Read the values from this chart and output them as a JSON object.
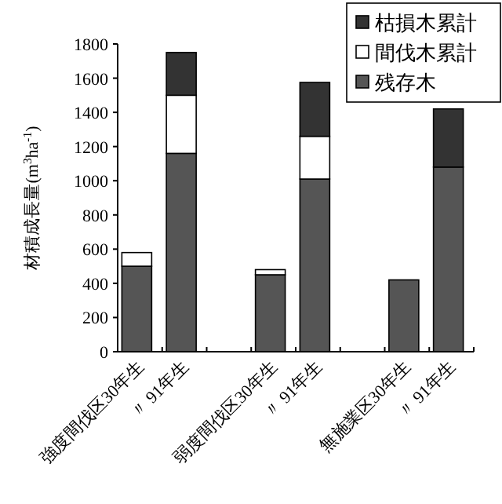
{
  "chart_data": {
    "type": "bar",
    "stacked": true,
    "ylabel": "材積成長量(m$^{3}$ha$^{-1}$)",
    "categories": [
      "強度間伐区30年生",
      "〃 91年生",
      null,
      "弱度間伐区30年生",
      "〃 91年生",
      null,
      "無施業区30年生",
      "〃 91年生"
    ],
    "series": [
      {
        "name": "残存木",
        "color": "#555555",
        "values": [
          500,
          1160,
          null,
          450,
          1010,
          null,
          420,
          1080
        ]
      },
      {
        "name": "間伐木累計",
        "color": "#ffffff",
        "values": [
          80,
          340,
          null,
          30,
          250,
          null,
          null,
          null
        ]
      },
      {
        "name": "枯損木累計",
        "color": "#333333",
        "values": [
          null,
          250,
          null,
          null,
          315,
          null,
          null,
          340
        ]
      }
    ],
    "ylim": [
      0,
      1800
    ],
    "yticks": [
      0,
      200,
      400,
      600,
      800,
      1000,
      1200,
      1400,
      1600,
      1800
    ],
    "legend": "top right",
    "grid": false
  }
}
